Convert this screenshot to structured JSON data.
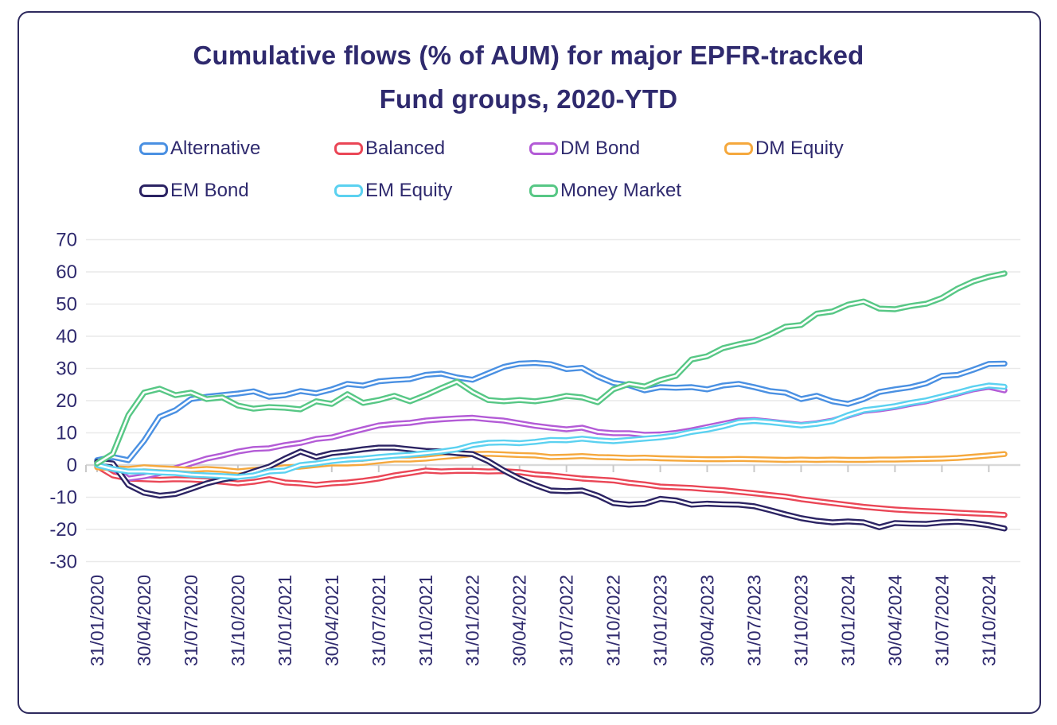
{
  "card": {
    "title_line1": "Cumulative flows (% of AUM) for major EPFR-tracked",
    "title_line2": "Fund groups, 2020-YTD"
  },
  "legend": {
    "items": [
      {
        "label": "Alternative",
        "color": "#4a90e2"
      },
      {
        "label": "Balanced",
        "color": "#ea4656"
      },
      {
        "label": "DM Bond",
        "color": "#b35bd6"
      },
      {
        "label": "DM Equity",
        "color": "#f5a83d"
      },
      {
        "label": "EM Bond",
        "color": "#2b2363"
      },
      {
        "label": "EM Equity",
        "color": "#5bd1f0"
      },
      {
        "label": "Money Market",
        "color": "#57c785"
      }
    ]
  },
  "chart_data": {
    "type": "line",
    "title": "Cumulative flows (% of AUM) for major EPFR-tracked Fund groups, 2020-YTD",
    "legend_position": "top",
    "grid": "horizontal-only",
    "ylim": [
      -30,
      70
    ],
    "yticks": [
      70,
      60,
      50,
      40,
      30,
      20,
      10,
      0,
      -10,
      -20,
      -30
    ],
    "x_tick_label_rotation": -90,
    "x_frequency": "monthly, labels shown quarterly",
    "x_tick_labels": [
      "31/01/2020",
      "30/04/2020",
      "31/07/2020",
      "31/10/2020",
      "31/01/2021",
      "30/04/2021",
      "31/07/2021",
      "31/10/2021",
      "31/01/2022",
      "30/04/2022",
      "31/07/2022",
      "31/10/2022",
      "31/01/2023",
      "30/04/2023",
      "31/07/2023",
      "31/10/2023",
      "31/01/2024",
      "30/04/2024",
      "31/07/2024",
      "31/10/2024"
    ],
    "line_style": "thick colored stroke with white core",
    "colors": {
      "text": "#2f2a6e",
      "gridline": "#e9e9e9",
      "zero_axis": "#d9d9d9",
      "tick": "#c9c9c9",
      "card_border": "#2e2a5e"
    },
    "series": [
      {
        "name": "Alternative",
        "color": "#4a90e2",
        "values": [
          1.5,
          2.5,
          1.5,
          7.5,
          15.0,
          17.0,
          20.5,
          21.2,
          21.7,
          22.2,
          22.9,
          21.2,
          21.7,
          23.0,
          22.3,
          23.5,
          25.2,
          24.7,
          26.0,
          26.4,
          26.7,
          28.0,
          28.4,
          27.2,
          26.5,
          28.5,
          30.5,
          31.5,
          31.7,
          31.3,
          29.8,
          30.2,
          27.5,
          25.5,
          24.8,
          23.2,
          24.2,
          24.0,
          24.2,
          23.5,
          24.7,
          25.2,
          24.2,
          23.0,
          22.5,
          20.5,
          21.5,
          19.8,
          19.0,
          20.5,
          22.7,
          23.5,
          24.2,
          25.4,
          27.7,
          28.0,
          29.6,
          31.4,
          31.5
        ]
      },
      {
        "name": "Balanced",
        "color": "#ea4656",
        "values": [
          -0.3,
          -3.2,
          -4.2,
          -4.4,
          -4.6,
          -4.4,
          -4.5,
          -4.8,
          -5.2,
          -5.7,
          -5.2,
          -4.4,
          -5.4,
          -5.7,
          -6.2,
          -5.7,
          -5.4,
          -4.9,
          -4.2,
          -3.2,
          -2.5,
          -1.7,
          -2.0,
          -1.8,
          -1.8,
          -2.0,
          -1.9,
          -2.2,
          -2.9,
          -3.2,
          -3.7,
          -4.2,
          -4.5,
          -4.8,
          -5.5,
          -6.0,
          -6.7,
          -6.9,
          -7.1,
          -7.5,
          -7.8,
          -8.3,
          -8.8,
          -9.3,
          -9.8,
          -10.6,
          -11.2,
          -11.8,
          -12.4,
          -13.0,
          -13.4,
          -13.8,
          -14.1,
          -14.3,
          -14.5,
          -14.8,
          -15.0,
          -15.2,
          -15.5
        ]
      },
      {
        "name": "DM Bond",
        "color": "#b35bd6",
        "values": [
          0.5,
          -1.0,
          -4.2,
          -3.5,
          -2.5,
          -1.0,
          0.5,
          2.0,
          3.0,
          4.2,
          5.0,
          5.2,
          6.2,
          6.9,
          8.1,
          8.6,
          9.9,
          11.1,
          12.3,
          12.8,
          13.1,
          13.8,
          14.2,
          14.5,
          14.7,
          14.2,
          13.8,
          13.0,
          12.2,
          11.6,
          11.1,
          11.6,
          10.3,
          9.9,
          9.9,
          9.4,
          9.5,
          10.0,
          10.8,
          11.8,
          12.8,
          13.8,
          14.0,
          13.5,
          13.0,
          12.5,
          13.0,
          13.8,
          15.3,
          16.8,
          17.3,
          18.0,
          19.0,
          19.8,
          21.0,
          22.2,
          23.5,
          24.3,
          23.2
        ]
      },
      {
        "name": "DM Equity",
        "color": "#f5a83d",
        "values": [
          -0.7,
          -1.0,
          -1.2,
          -0.7,
          -1.0,
          -1.2,
          -1.5,
          -1.2,
          -1.5,
          -2.0,
          -1.5,
          -1.2,
          -0.7,
          -0.5,
          0.0,
          0.5,
          0.5,
          0.7,
          1.2,
          1.7,
          1.7,
          2.0,
          2.5,
          2.9,
          3.4,
          3.5,
          3.3,
          3.1,
          3.0,
          2.5,
          2.6,
          2.8,
          2.5,
          2.4,
          2.2,
          2.3,
          2.1,
          2.0,
          1.9,
          1.8,
          1.8,
          1.9,
          1.8,
          1.7,
          1.6,
          1.7,
          1.6,
          1.7,
          1.6,
          1.6,
          1.7,
          1.7,
          1.8,
          1.9,
          2.0,
          2.2,
          2.6,
          3.0,
          3.4
        ]
      },
      {
        "name": "EM Bond",
        "color": "#2b2363",
        "values": [
          1.0,
          0.5,
          -6.2,
          -8.6,
          -9.5,
          -9.0,
          -7.4,
          -5.7,
          -4.5,
          -3.7,
          -2.0,
          -0.5,
          2.0,
          4.2,
          2.5,
          3.7,
          4.2,
          4.9,
          5.4,
          5.4,
          4.9,
          4.4,
          4.2,
          3.7,
          3.4,
          1.2,
          -1.7,
          -4.2,
          -6.2,
          -7.9,
          -8.1,
          -7.9,
          -9.5,
          -11.8,
          -12.3,
          -12.0,
          -10.5,
          -11.0,
          -12.3,
          -12.0,
          -12.2,
          -12.3,
          -12.8,
          -14.0,
          -15.3,
          -16.5,
          -17.3,
          -17.8,
          -17.5,
          -17.8,
          -19.3,
          -18.0,
          -18.2,
          -18.3,
          -17.8,
          -17.6,
          -18.0,
          -18.7,
          -19.7
        ]
      },
      {
        "name": "EM Equity",
        "color": "#5bd1f0",
        "values": [
          0.0,
          -1.2,
          -2.0,
          -2.0,
          -2.3,
          -2.5,
          -3.0,
          -3.2,
          -3.4,
          -3.7,
          -3.2,
          -2.0,
          -1.7,
          0.0,
          0.5,
          1.2,
          1.7,
          2.0,
          2.5,
          2.9,
          3.2,
          3.7,
          4.2,
          4.9,
          6.2,
          6.9,
          7.0,
          6.8,
          7.2,
          7.8,
          7.7,
          8.2,
          7.7,
          7.4,
          7.8,
          8.2,
          8.6,
          9.2,
          10.3,
          11.0,
          12.0,
          13.3,
          13.7,
          13.3,
          12.8,
          12.3,
          12.8,
          13.6,
          15.5,
          17.0,
          17.6,
          18.3,
          19.3,
          20.1,
          21.3,
          22.5,
          23.8,
          24.7,
          24.3
        ]
      },
      {
        "name": "Money Market",
        "color": "#57c785",
        "values": [
          0.5,
          3.5,
          15.5,
          22.5,
          23.7,
          21.7,
          22.5,
          20.5,
          21.0,
          18.5,
          17.5,
          18.0,
          17.8,
          17.3,
          19.8,
          19.0,
          22.0,
          19.3,
          20.2,
          21.5,
          19.8,
          21.7,
          23.9,
          25.9,
          22.7,
          20.2,
          19.8,
          20.2,
          19.8,
          20.5,
          21.5,
          21.0,
          19.5,
          23.5,
          25.2,
          24.4,
          26.4,
          27.7,
          32.8,
          33.8,
          36.3,
          37.5,
          38.5,
          40.5,
          43.0,
          43.5,
          47.0,
          47.7,
          49.8,
          50.8,
          48.6,
          48.4,
          49.4,
          50.1,
          51.9,
          54.8,
          57.0,
          58.5,
          59.5
        ]
      }
    ]
  }
}
